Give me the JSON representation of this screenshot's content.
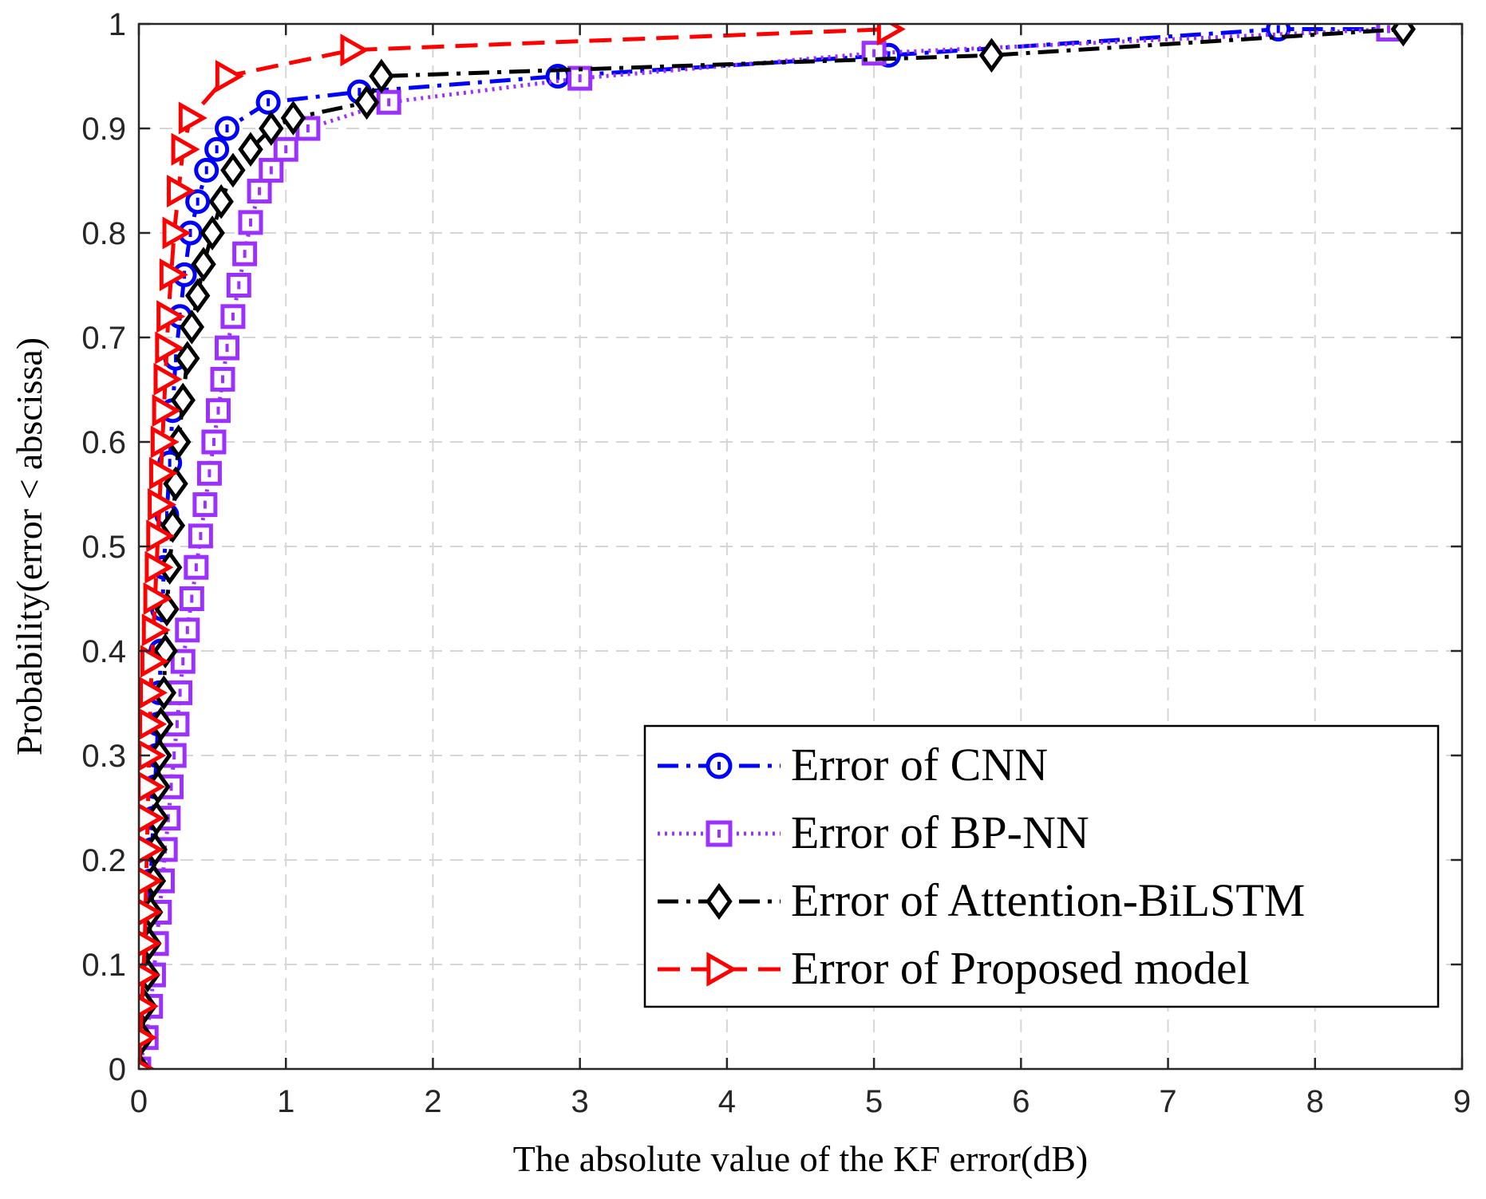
{
  "chart_data": {
    "type": "line",
    "title": "",
    "xlabel": "The absolute value of the KF error(dB)",
    "ylabel": "Probability(error < abscissa)",
    "xlim": [
      0,
      9
    ],
    "ylim": [
      0,
      1
    ],
    "grid": true,
    "legend_position": "bottom-right",
    "x_ticks": [
      "0",
      "1",
      "2",
      "3",
      "4",
      "5",
      "6",
      "7",
      "8",
      "9"
    ],
    "y_ticks": [
      "0",
      "0.1",
      "0.2",
      "0.3",
      "0.4",
      "0.5",
      "0.6",
      "0.7",
      "0.8",
      "0.9",
      "1"
    ],
    "series": [
      {
        "name": "Error of CNN",
        "color": "#0000ff",
        "line_style": "dashdot",
        "marker": "circle",
        "x": [
          0,
          0.02,
          0.04,
          0.05,
          0.06,
          0.07,
          0.08,
          0.09,
          0.1,
          0.11,
          0.12,
          0.13,
          0.14,
          0.15,
          0.16,
          0.17,
          0.19,
          0.21,
          0.23,
          0.25,
          0.28,
          0.31,
          0.35,
          0.4,
          0.46,
          0.53,
          0.6,
          0.88,
          1.5,
          2.85,
          5.1,
          7.75,
          8.5
        ],
        "y": [
          0,
          0.03,
          0.06,
          0.09,
          0.12,
          0.15,
          0.18,
          0.21,
          0.24,
          0.27,
          0.3,
          0.33,
          0.36,
          0.4,
          0.44,
          0.48,
          0.53,
          0.58,
          0.63,
          0.68,
          0.72,
          0.76,
          0.8,
          0.83,
          0.86,
          0.88,
          0.9,
          0.925,
          0.935,
          0.95,
          0.97,
          0.995,
          0.995
        ]
      },
      {
        "name": "Error of BP-NN",
        "color": "#9b30ff",
        "line_style": "dotted",
        "marker": "square",
        "x": [
          0,
          0.05,
          0.08,
          0.1,
          0.12,
          0.14,
          0.16,
          0.18,
          0.2,
          0.22,
          0.24,
          0.26,
          0.28,
          0.3,
          0.33,
          0.36,
          0.39,
          0.42,
          0.45,
          0.48,
          0.51,
          0.54,
          0.57,
          0.6,
          0.64,
          0.68,
          0.72,
          0.76,
          0.82,
          0.9,
          1.0,
          1.15,
          1.7,
          3.0,
          5.0,
          8.5
        ],
        "y": [
          0,
          0.03,
          0.06,
          0.09,
          0.12,
          0.15,
          0.18,
          0.21,
          0.24,
          0.27,
          0.3,
          0.33,
          0.36,
          0.39,
          0.42,
          0.45,
          0.48,
          0.51,
          0.54,
          0.57,
          0.6,
          0.63,
          0.66,
          0.69,
          0.72,
          0.75,
          0.78,
          0.81,
          0.84,
          0.86,
          0.88,
          0.9,
          0.925,
          0.948,
          0.972,
          0.995
        ]
      },
      {
        "name": "Error of Attention-BiLSTM",
        "color": "#000000",
        "line_style": "dashdot",
        "marker": "diamond",
        "x": [
          0,
          0.02,
          0.04,
          0.06,
          0.07,
          0.08,
          0.1,
          0.11,
          0.12,
          0.13,
          0.14,
          0.15,
          0.17,
          0.18,
          0.19,
          0.21,
          0.23,
          0.25,
          0.27,
          0.3,
          0.33,
          0.36,
          0.4,
          0.44,
          0.5,
          0.56,
          0.64,
          0.76,
          0.9,
          1.05,
          1.55,
          1.65,
          5.8,
          8.6
        ],
        "y": [
          0,
          0.03,
          0.06,
          0.09,
          0.12,
          0.15,
          0.18,
          0.21,
          0.24,
          0.27,
          0.3,
          0.33,
          0.36,
          0.4,
          0.44,
          0.48,
          0.52,
          0.56,
          0.6,
          0.64,
          0.68,
          0.71,
          0.74,
          0.77,
          0.8,
          0.83,
          0.86,
          0.88,
          0.9,
          0.91,
          0.925,
          0.95,
          0.97,
          0.995
        ]
      },
      {
        "name": "Error of Proposed model",
        "color": "#ff0000",
        "line_style": "dashed",
        "marker": "triangle-right",
        "x": [
          0,
          0.01,
          0.02,
          0.03,
          0.04,
          0.045,
          0.05,
          0.055,
          0.06,
          0.065,
          0.07,
          0.075,
          0.08,
          0.09,
          0.1,
          0.11,
          0.12,
          0.13,
          0.14,
          0.15,
          0.16,
          0.17,
          0.18,
          0.19,
          0.2,
          0.22,
          0.24,
          0.27,
          0.3,
          0.35,
          0.6,
          1.45,
          5.1
        ],
        "y": [
          0,
          0.03,
          0.06,
          0.09,
          0.12,
          0.15,
          0.18,
          0.21,
          0.24,
          0.27,
          0.3,
          0.33,
          0.36,
          0.39,
          0.42,
          0.45,
          0.48,
          0.51,
          0.54,
          0.57,
          0.6,
          0.63,
          0.66,
          0.69,
          0.72,
          0.76,
          0.8,
          0.84,
          0.88,
          0.91,
          0.95,
          0.975,
          0.995
        ]
      }
    ]
  }
}
